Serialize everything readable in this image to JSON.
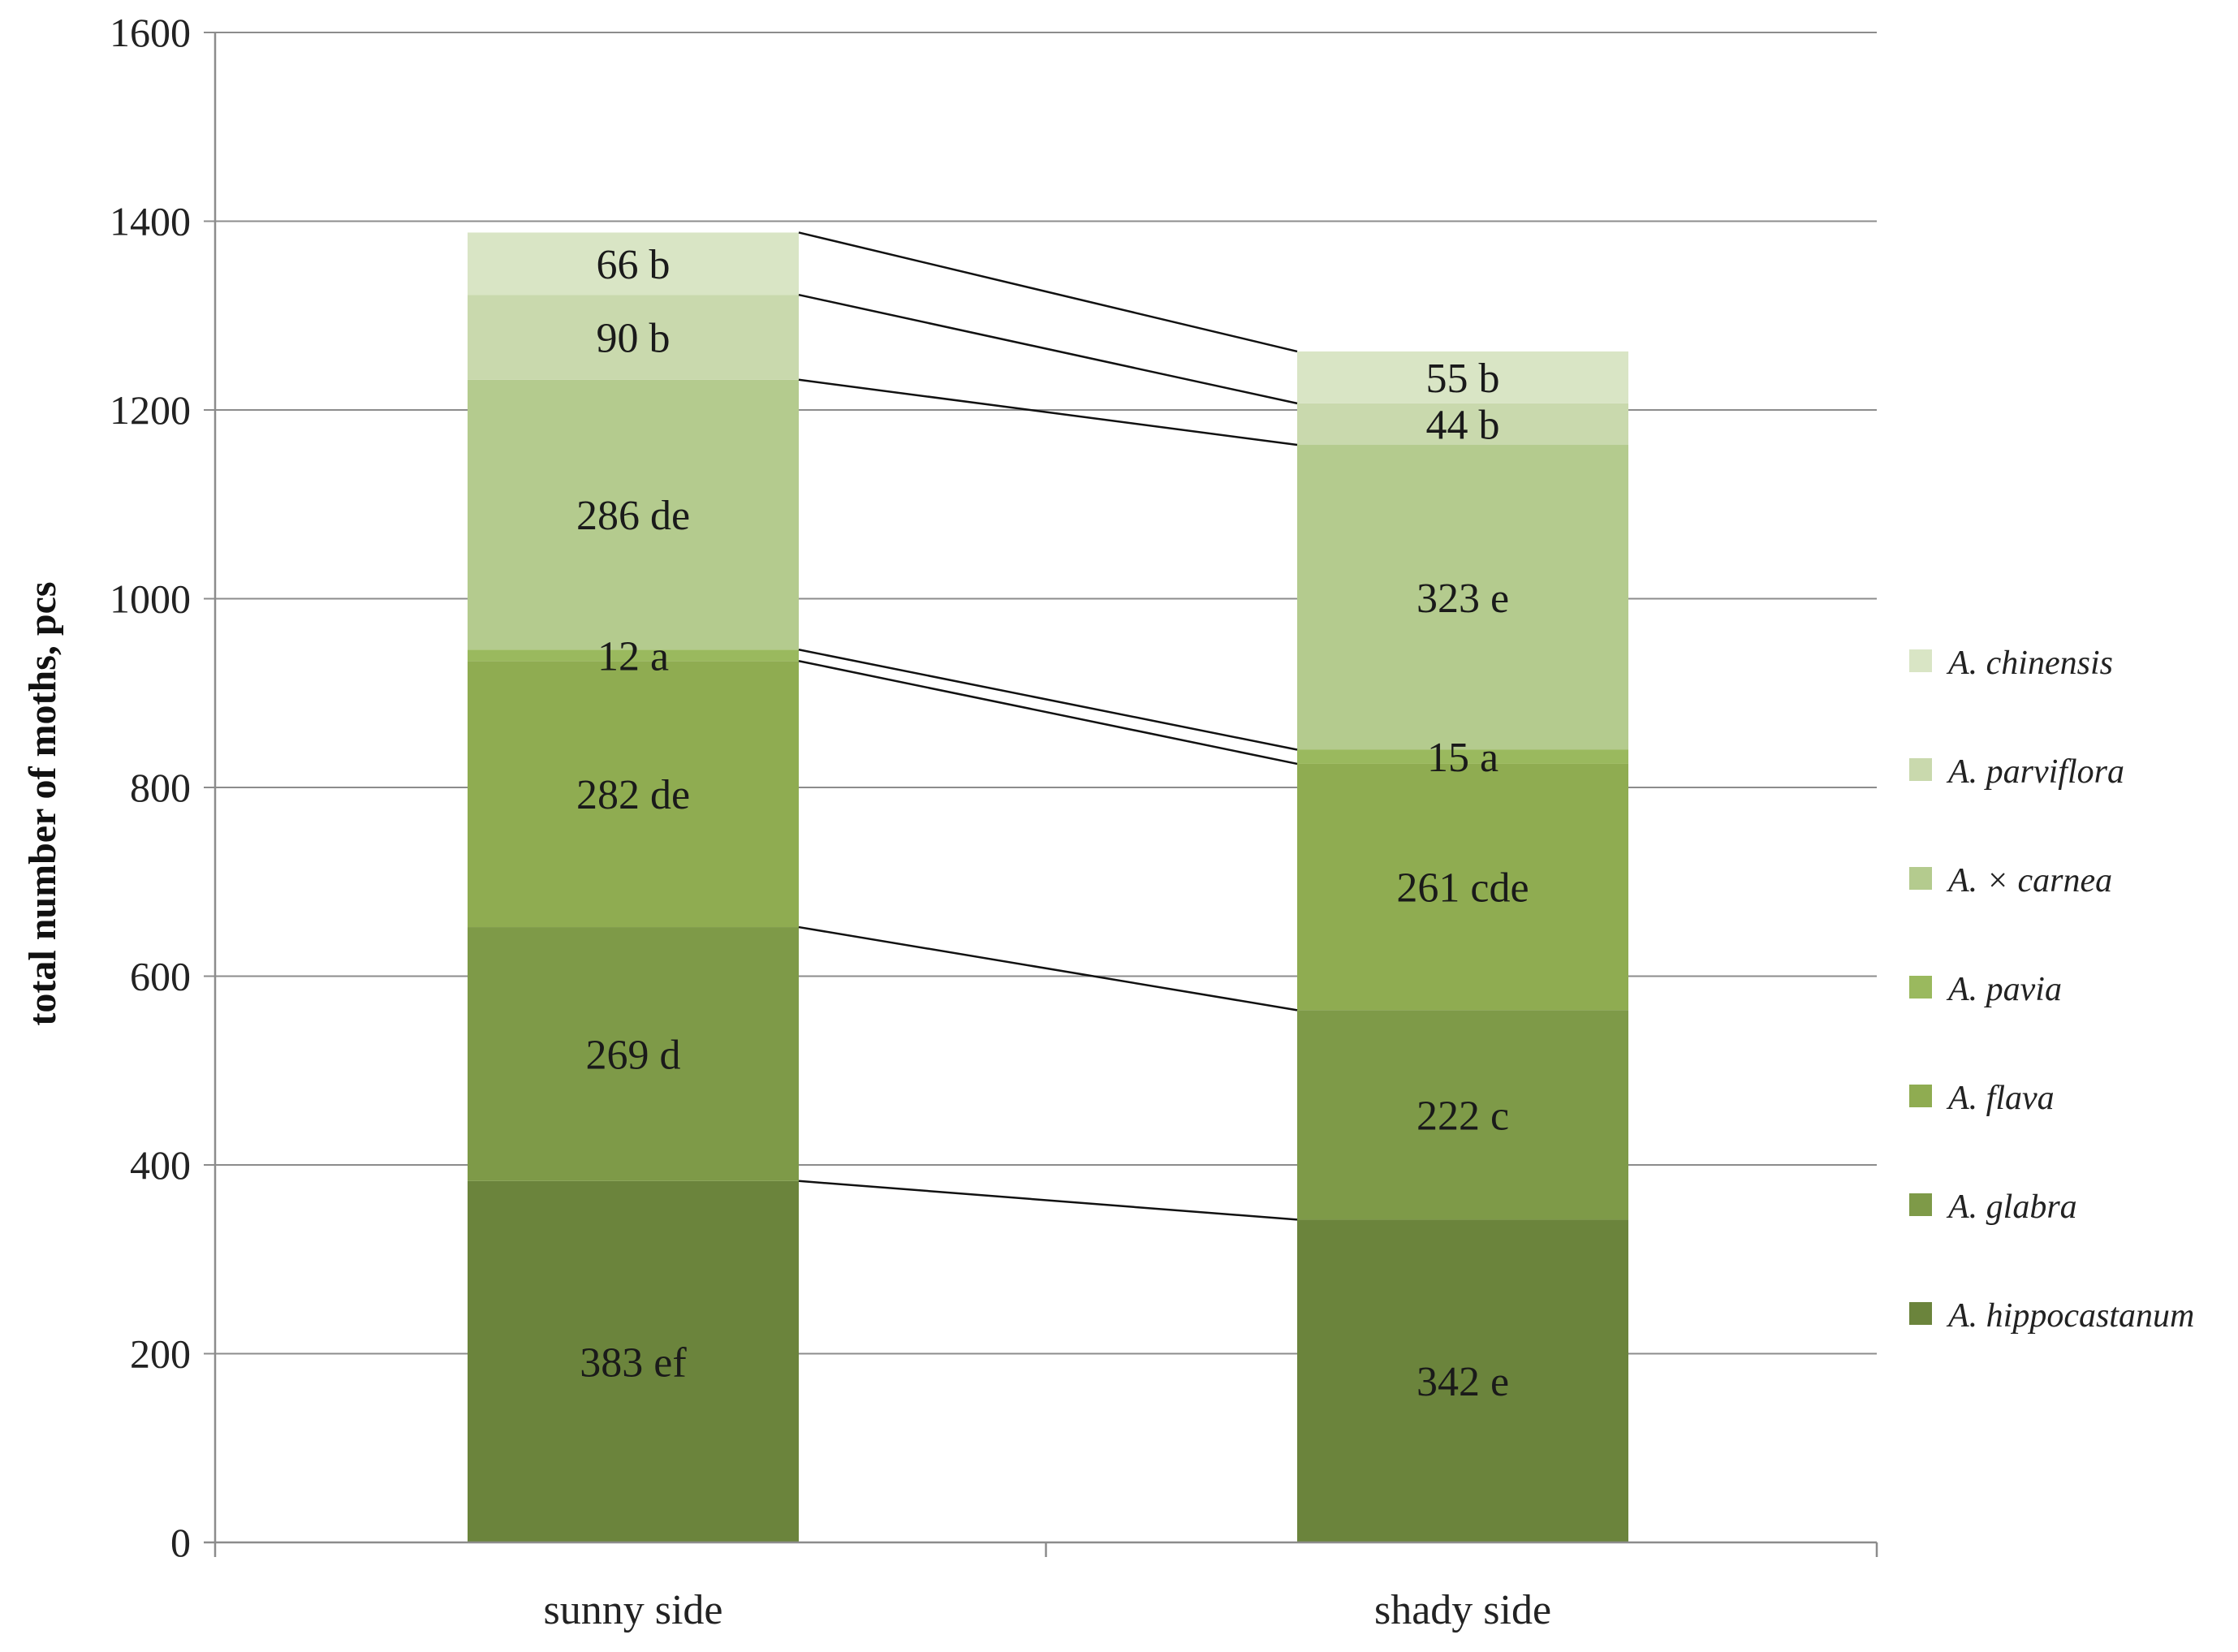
{
  "chart_data": {
    "type": "bar",
    "stacked": true,
    "categories": [
      "sunny side",
      "shady side"
    ],
    "ylabel": "total number of moths, pcs",
    "xlabel": "",
    "ylim": [
      0,
      1600
    ],
    "yticks": [
      0,
      200,
      400,
      600,
      800,
      1000,
      1200,
      1400,
      1600
    ],
    "grid": true,
    "legend_position": "right",
    "connector_lines": true,
    "series": [
      {
        "name": "A. hippocastanum",
        "color": "#6b843c",
        "values": [
          383,
          342
        ],
        "labels": [
          "383 ef",
          "342 e"
        ]
      },
      {
        "name": "A. glabra",
        "color": "#7e9a48",
        "values": [
          269,
          222
        ],
        "labels": [
          "269 d",
          "222 c"
        ]
      },
      {
        "name": "A. flava",
        "color": "#8fac51",
        "values": [
          282,
          261
        ],
        "labels": [
          "282 de",
          "261 cde"
        ]
      },
      {
        "name": "A. pavia",
        "color": "#9ab95e",
        "values": [
          12,
          15
        ],
        "labels": [
          "12 a",
          "15 a"
        ]
      },
      {
        "name": "A. × carnea",
        "color": "#b4cb8e",
        "values": [
          286,
          323
        ],
        "labels": [
          "286 de",
          "323 e"
        ]
      },
      {
        "name": "A. parviflora",
        "color": "#c9d9ad",
        "values": [
          90,
          44
        ],
        "labels": [
          "90 b",
          "44 b"
        ]
      },
      {
        "name": "A. chinensis",
        "color": "#d9e5c5",
        "values": [
          66,
          55
        ],
        "labels": [
          "66 b",
          "55 b"
        ]
      }
    ]
  }
}
